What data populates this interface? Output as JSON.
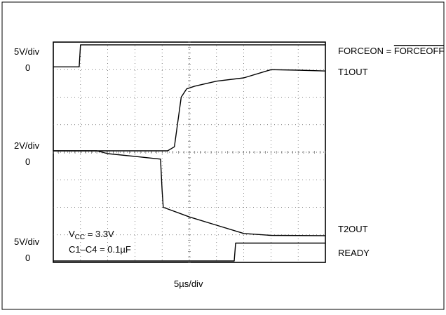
{
  "chart_data": {
    "type": "line",
    "time_per_div": "5µs/div",
    "x_divisions": 10,
    "y_divisions": 8,
    "grid": true,
    "left_labels": [
      {
        "id": "scale-top",
        "text": "5V/div"
      },
      {
        "id": "zero-top",
        "text": "0"
      },
      {
        "id": "scale-mid",
        "text": "2V/div"
      },
      {
        "id": "zero-mid",
        "text": "0"
      },
      {
        "id": "scale-bot",
        "text": "5V/div"
      },
      {
        "id": "zero-bot",
        "text": "0"
      }
    ],
    "series": [
      {
        "name": "FORCEON = FORCEOFF",
        "name_left": "FORCEON = ",
        "name_overline": "FORCEOFF",
        "color": "#000000",
        "points": [
          [
            0,
            7.1
          ],
          [
            0.95,
            7.1
          ],
          [
            1.0,
            7.9
          ],
          [
            10,
            7.9
          ]
        ]
      },
      {
        "name": "T1OUT",
        "color": "#000000",
        "points": [
          [
            0,
            4.05
          ],
          [
            4.2,
            4.05
          ],
          [
            4.45,
            4.2
          ],
          [
            4.7,
            6.0
          ],
          [
            4.9,
            6.3
          ],
          [
            5.2,
            6.4
          ],
          [
            6.0,
            6.58
          ],
          [
            7.0,
            6.7
          ],
          [
            8.0,
            7.0
          ],
          [
            9.0,
            6.98
          ],
          [
            10,
            6.95
          ]
        ]
      },
      {
        "name": "T2OUT",
        "color": "#000000",
        "points": [
          [
            0,
            4.05
          ],
          [
            1.6,
            4.05
          ],
          [
            2.0,
            3.95
          ],
          [
            3.0,
            3.85
          ],
          [
            3.94,
            3.75
          ],
          [
            4.0,
            2.6
          ],
          [
            4.04,
            2.0
          ],
          [
            5.0,
            1.65
          ],
          [
            6.0,
            1.35
          ],
          [
            7.0,
            1.05
          ],
          [
            8.0,
            0.98
          ],
          [
            10,
            0.97
          ]
        ]
      },
      {
        "name": "READY",
        "color": "#000000",
        "points": [
          [
            0,
            0.05
          ],
          [
            6.65,
            0.05
          ],
          [
            6.7,
            0.7
          ],
          [
            10,
            0.7
          ]
        ]
      }
    ],
    "annotations": [
      {
        "id": "vcc",
        "text_main": "V",
        "text_sub": "CC",
        "text_rest": " = 3.3V"
      },
      {
        "id": "cap",
        "text": "C1–C4 = 0.1µF"
      }
    ]
  }
}
